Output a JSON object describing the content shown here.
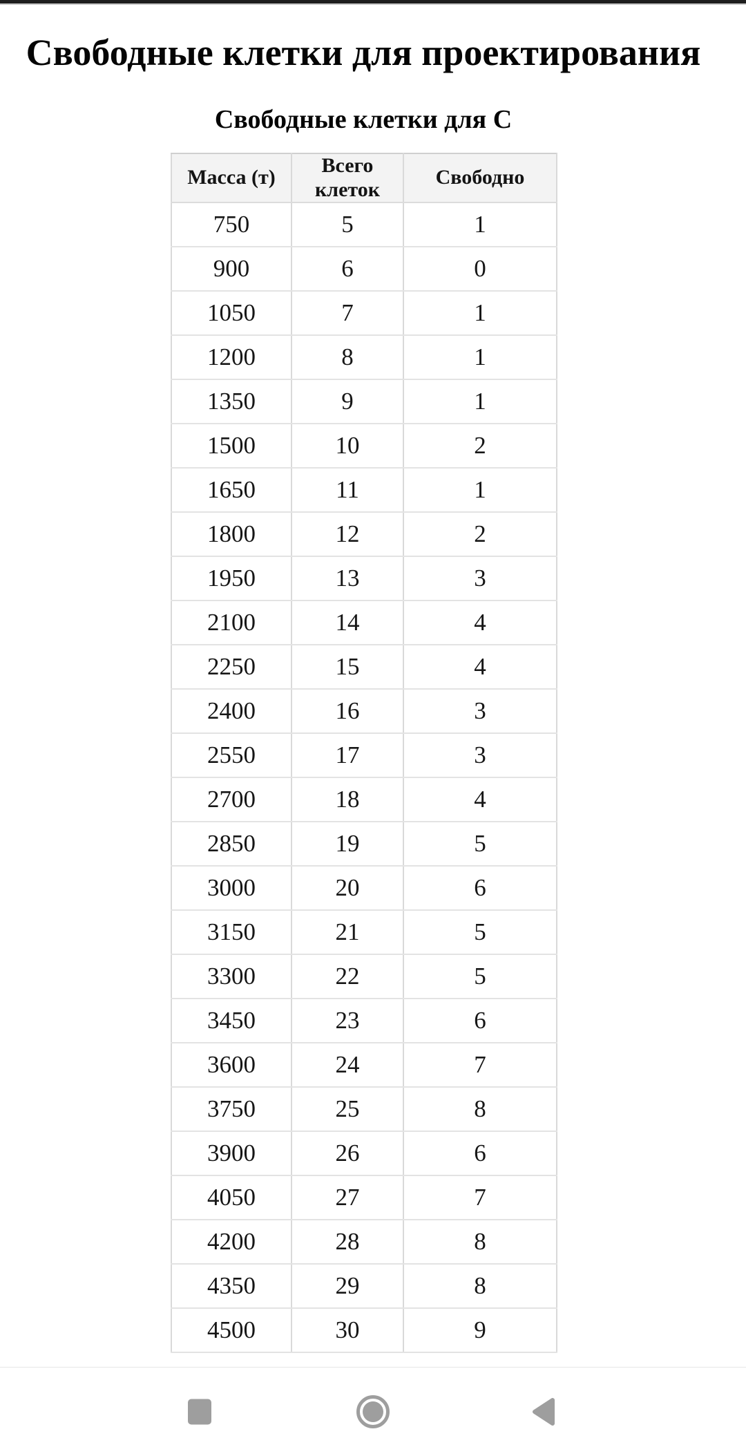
{
  "page": {
    "title": "Свободные клетки для проектирования",
    "section_title": "Свободные клетки для С"
  },
  "table": {
    "columns": [
      "Масса (т)",
      "Всего клеток",
      "Свободно"
    ],
    "rows": [
      {
        "mass": "750",
        "total": "5",
        "free": "1",
        "status": "warn"
      },
      {
        "mass": "900",
        "total": "6",
        "free": "0",
        "status": "danger"
      },
      {
        "mass": "1050",
        "total": "7",
        "free": "1",
        "status": "warn"
      },
      {
        "mass": "1200",
        "total": "8",
        "free": "1",
        "status": "warn"
      },
      {
        "mass": "1350",
        "total": "9",
        "free": "1",
        "status": "warn"
      },
      {
        "mass": "1500",
        "total": "10",
        "free": "2",
        "status": "warn"
      },
      {
        "mass": "1650",
        "total": "11",
        "free": "1",
        "status": "warn"
      },
      {
        "mass": "1800",
        "total": "12",
        "free": "2",
        "status": "warn"
      },
      {
        "mass": "1950",
        "total": "13",
        "free": "3",
        "status": "ok"
      },
      {
        "mass": "2100",
        "total": "14",
        "free": "4",
        "status": "ok"
      },
      {
        "mass": "2250",
        "total": "15",
        "free": "4",
        "status": "ok"
      },
      {
        "mass": "2400",
        "total": "16",
        "free": "3",
        "status": "ok"
      },
      {
        "mass": "2550",
        "total": "17",
        "free": "3",
        "status": "ok"
      },
      {
        "mass": "2700",
        "total": "18",
        "free": "4",
        "status": "ok"
      },
      {
        "mass": "2850",
        "total": "19",
        "free": "5",
        "status": "ok"
      },
      {
        "mass": "3000",
        "total": "20",
        "free": "6",
        "status": "ok"
      },
      {
        "mass": "3150",
        "total": "21",
        "free": "5",
        "status": "ok"
      },
      {
        "mass": "3300",
        "total": "22",
        "free": "5",
        "status": "ok"
      },
      {
        "mass": "3450",
        "total": "23",
        "free": "6",
        "status": "ok"
      },
      {
        "mass": "3600",
        "total": "24",
        "free": "7",
        "status": "ok"
      },
      {
        "mass": "3750",
        "total": "25",
        "free": "8",
        "status": "ok"
      },
      {
        "mass": "3900",
        "total": "26",
        "free": "6",
        "status": "ok"
      },
      {
        "mass": "4050",
        "total": "27",
        "free": "7",
        "status": "ok"
      },
      {
        "mass": "4200",
        "total": "28",
        "free": "8",
        "status": "ok"
      },
      {
        "mass": "4350",
        "total": "29",
        "free": "8",
        "status": "ok"
      },
      {
        "mass": "4500",
        "total": "30",
        "free": "9",
        "status": "ok"
      }
    ]
  },
  "colors": {
    "status_bar": "#1e1e1e",
    "header_bg": "#f3f3f3",
    "warn_bg": "#fdf3d6",
    "warn_text": "#df9e3b",
    "danger_bg": "#fbe5e8",
    "danger_text": "#b4403a",
    "ok_bg": "#e8f2e9",
    "ok_text": "#3e7e48",
    "nav_icon": "#9e9e9e"
  },
  "nav_bar": {
    "icons": [
      "recents-square-icon",
      "home-circle-icon",
      "back-triangle-icon"
    ]
  }
}
